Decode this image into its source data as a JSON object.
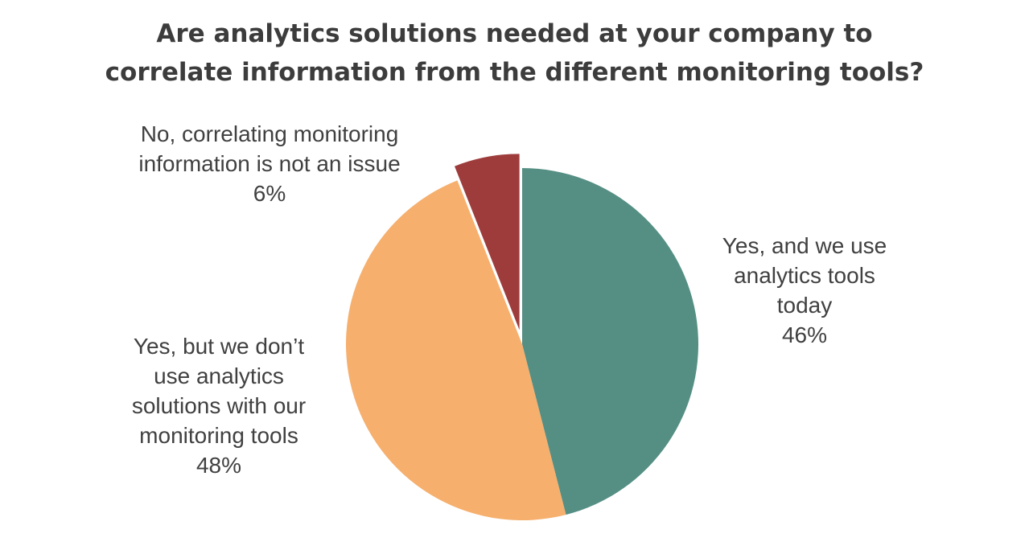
{
  "chart_data": {
    "type": "pie",
    "title_lines": [
      "Are analytics solutions needed at your company to",
      "correlate information from the different monitoring tools?"
    ],
    "start_angle_deg": 0,
    "direction": "clockwise",
    "slices": [
      {
        "label_lines": [
          "Yes, and we use",
          "analytics tools",
          "today"
        ],
        "value": 46,
        "value_label": "46%",
        "color": "#558f84",
        "exploded": false
      },
      {
        "label_lines": [
          "Yes, but we don’t",
          "use analytics",
          "solutions with our",
          "monitoring tools"
        ],
        "value": 48,
        "value_label": "48%",
        "color": "#f6af6d",
        "exploded": false
      },
      {
        "label_lines": [
          "No, correlating monitoring",
          "information is not an issue"
        ],
        "value": 6,
        "value_label": "6%",
        "color": "#9e3c3c",
        "exploded": true
      }
    ]
  }
}
